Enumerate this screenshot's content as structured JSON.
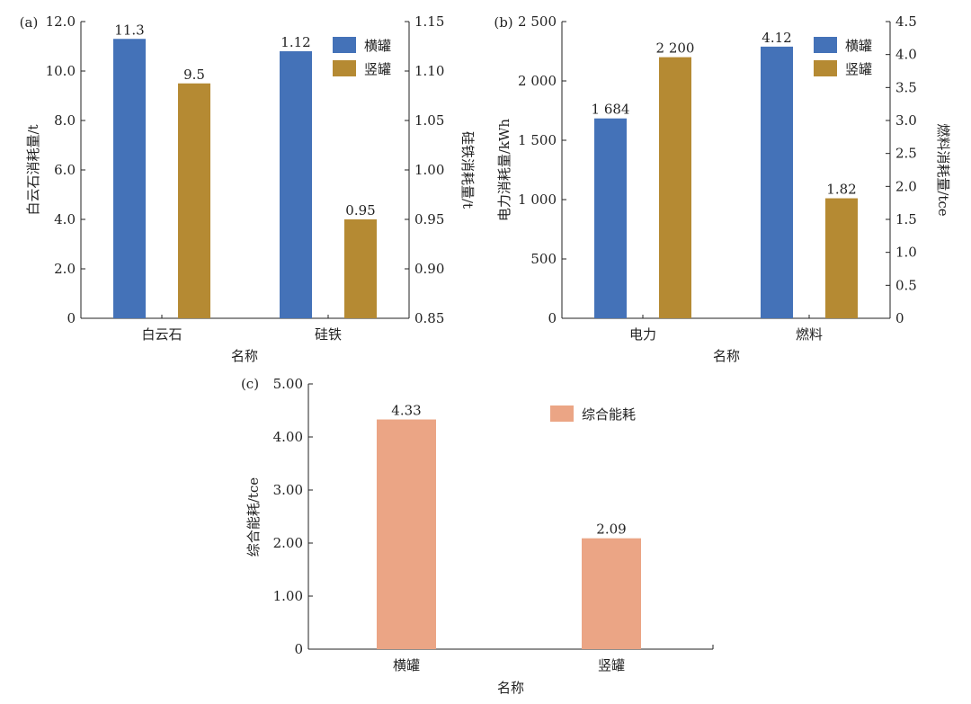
{
  "chart_data": [
    {
      "panel": "(a)",
      "type": "bar",
      "categories": [
        "白云石",
        "硅铁"
      ],
      "xlabel": "名称",
      "ylabel": "白云石消耗量/t",
      "ylabel_right": "硅铁消耗量/t",
      "ylim": [
        0,
        12.0
      ],
      "yticks": [
        "0",
        "2.0",
        "4.0",
        "6.0",
        "8.0",
        "10.0",
        "12.0"
      ],
      "ylim_right": [
        0.85,
        1.15
      ],
      "yticks_right": [
        "0.85",
        "0.90",
        "0.95",
        "1.00",
        "1.05",
        "1.10",
        "1.15"
      ],
      "series": [
        {
          "name": "横罐",
          "color": "#4472b8",
          "values": [
            11.3,
            1.12
          ],
          "labels": [
            "11.3",
            "1.12"
          ],
          "axis": [
            "left",
            "right"
          ]
        },
        {
          "name": "竖罐",
          "color": "#b58a33",
          "values": [
            9.5,
            0.95
          ],
          "labels": [
            "9.5",
            "0.95"
          ],
          "axis": [
            "left",
            "right"
          ]
        }
      ],
      "legend": "top-right"
    },
    {
      "panel": "(b)",
      "type": "bar",
      "categories": [
        "电力",
        "燃料"
      ],
      "xlabel": "名称",
      "ylabel": "电力消耗量/kWh",
      "ylabel_right": "燃料消耗量/tce",
      "ylim": [
        0,
        2500
      ],
      "yticks": [
        "0",
        "500",
        "1 000",
        "1 500",
        "2 000",
        "2 500"
      ],
      "ylim_right": [
        0,
        4.5
      ],
      "yticks_right": [
        "0",
        "0.5",
        "1.0",
        "1.5",
        "2.0",
        "2.5",
        "3.0",
        "3.5",
        "4.0",
        "4.5"
      ],
      "series": [
        {
          "name": "横罐",
          "color": "#4472b8",
          "values": [
            1684,
            4.12
          ],
          "labels": [
            "1 684",
            "4.12"
          ],
          "axis": [
            "left",
            "right"
          ]
        },
        {
          "name": "竖罐",
          "color": "#b58a33",
          "values": [
            2200,
            1.82
          ],
          "labels": [
            "2 200",
            "1.82"
          ],
          "axis": [
            "left",
            "right"
          ]
        }
      ],
      "legend": "top-right"
    },
    {
      "panel": "(c)",
      "type": "bar",
      "categories": [
        "横罐",
        "竖罐"
      ],
      "xlabel": "名称",
      "ylabel": "综合能耗/tce",
      "ylim": [
        0,
        5.0
      ],
      "yticks": [
        "0",
        "1.00",
        "2.00",
        "3.00",
        "4.00",
        "5.00"
      ],
      "series": [
        {
          "name": "综合能耗",
          "color": "#eba585",
          "values": [
            4.33,
            2.09
          ],
          "labels": [
            "4.33",
            "2.09"
          ]
        }
      ],
      "legend": "top-right"
    }
  ]
}
